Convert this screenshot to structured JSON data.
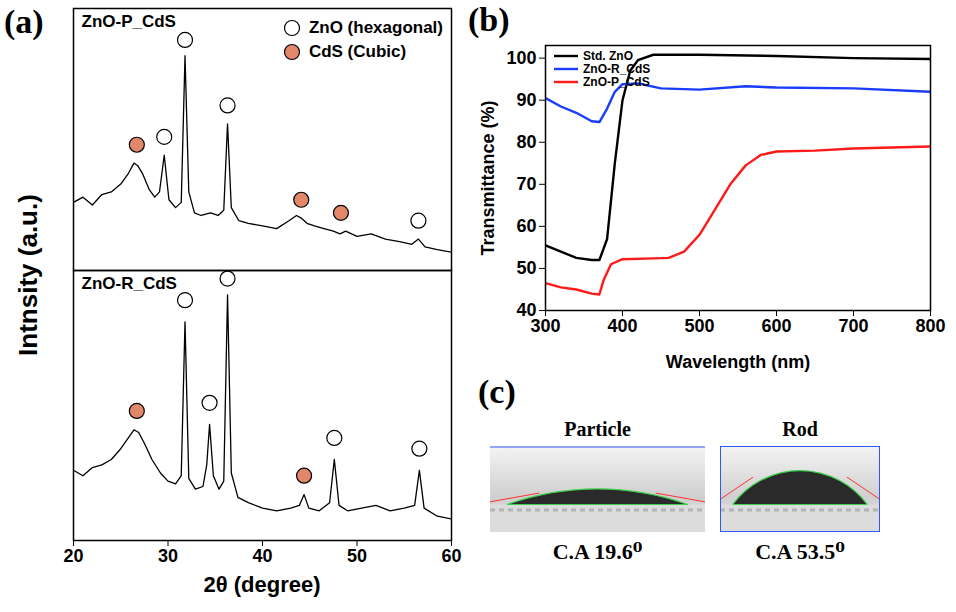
{
  "chart_data": [
    {
      "panel": "(a)",
      "type": "line",
      "title": "ZnO-P_CdS",
      "ylabel": "Intnsity (a.u.)",
      "xlim": [
        20,
        60
      ],
      "ylim": [
        0,
        100
      ],
      "tick_labels": false,
      "legend": "top-right",
      "series": [
        {
          "type": "line",
          "color": "#000000",
          "x": [
            20,
            21,
            22,
            23,
            24,
            25,
            25.8,
            26.4,
            26.8,
            27.3,
            28,
            28.6,
            29.1,
            29.6,
            30.1,
            30.8,
            31.4,
            31.8,
            32.2,
            32.8,
            33.5,
            34.5,
            35.3,
            35.9,
            36.3,
            36.7,
            37.5,
            38.5,
            40,
            41.5,
            42.8,
            43.6,
            44.1,
            44.7,
            45.5,
            46.5,
            47.5,
            48.2,
            48.8,
            50,
            51.5,
            53,
            54.5,
            55.8,
            56.5,
            57.2,
            58.5,
            60
          ],
          "values": [
            26,
            28,
            25,
            29,
            30,
            33,
            37,
            41,
            40,
            37,
            31,
            28,
            30,
            44,
            27,
            24,
            26,
            82,
            30,
            22,
            21,
            22,
            21,
            23,
            56,
            24,
            19,
            18,
            17,
            16,
            19,
            21,
            20,
            18,
            17,
            16,
            15,
            14,
            15,
            13,
            14,
            12,
            11,
            10,
            12,
            9,
            8,
            7
          ]
        },
        {
          "name": "ZnO (hexagonal)",
          "type": "scatter",
          "marker": "open-circle",
          "color": "#000000",
          "x": [
            29.6,
            31.8,
            36.3,
            56.5
          ],
          "values": [
            51,
            88,
            63,
            19
          ]
        },
        {
          "name": "CdS (Cubic)",
          "type": "scatter",
          "marker": "circle",
          "color": "#e3876a",
          "x": [
            26.7,
            44.1,
            48.3
          ],
          "values": [
            48,
            27,
            22
          ]
        }
      ]
    },
    {
      "type": "line",
      "title": "ZnO-R_CdS",
      "xlabel": "2θ (degree)",
      "xlim": [
        20,
        60
      ],
      "xticks": [
        20,
        30,
        40,
        50,
        60
      ],
      "ylim": [
        0,
        100
      ],
      "tick_labels": "x",
      "series": [
        {
          "type": "line",
          "color": "#000000",
          "x": [
            20,
            21,
            22,
            23,
            24,
            25,
            25.8,
            26.4,
            26.9,
            27.5,
            28.3,
            29.2,
            30,
            30.8,
            31.4,
            31.8,
            32.2,
            32.9,
            33.7,
            34.1,
            34.4,
            34.8,
            35.4,
            35.9,
            36.3,
            36.7,
            37.4,
            38.5,
            40,
            41.5,
            43,
            43.9,
            44.4,
            44.9,
            46,
            47.1,
            47.6,
            48.1,
            49,
            50.5,
            52,
            53.5,
            55,
            56.1,
            56.6,
            57.1,
            58.5,
            60
          ],
          "values": [
            26,
            24,
            27,
            28,
            30,
            34,
            38,
            41,
            40,
            36,
            30,
            25,
            22,
            21,
            24,
            81,
            23,
            19,
            20,
            28,
            43,
            24,
            19,
            22,
            91,
            25,
            16,
            14,
            12,
            11,
            12,
            13,
            17,
            12,
            11,
            14,
            30,
            13,
            11,
            12,
            13,
            11,
            12,
            13,
            26,
            12,
            9,
            8
          ]
        },
        {
          "name": "ZnO (hexagonal)",
          "type": "scatter",
          "marker": "open-circle",
          "color": "#000000",
          "x": [
            31.8,
            34.4,
            36.3,
            47.6,
            56.6
          ],
          "values": [
            89,
            51,
            97,
            38,
            34
          ]
        },
        {
          "name": "CdS (Cubic)",
          "type": "scatter",
          "marker": "circle",
          "color": "#e3876a",
          "x": [
            26.7,
            44.4
          ],
          "values": [
            48,
            24
          ]
        }
      ]
    },
    {
      "panel": "(b)",
      "type": "line",
      "xlabel": "Wavelength (nm)",
      "ylabel": "Transmittance (%)",
      "xlim": [
        300,
        800
      ],
      "xticks": [
        300,
        400,
        500,
        600,
        700,
        800
      ],
      "ylim": [
        40,
        103
      ],
      "yticks": [
        40,
        50,
        60,
        70,
        80,
        90,
        100
      ],
      "legend": "top-left",
      "series": [
        {
          "name": "Std. ZnO",
          "color": "#000000",
          "x": [
            300,
            320,
            340,
            360,
            370,
            380,
            390,
            400,
            410,
            420,
            440,
            500,
            600,
            700,
            800
          ],
          "values": [
            55.5,
            54,
            52.5,
            52,
            52,
            57,
            75,
            90,
            97,
            99.5,
            100.8,
            100.8,
            100.5,
            100,
            99.8
          ]
        },
        {
          "name": "ZnO-R_CdS",
          "color": "#1a3cff",
          "x": [
            300,
            320,
            340,
            360,
            370,
            380,
            390,
            400,
            420,
            450,
            500,
            560,
            600,
            700,
            800
          ],
          "values": [
            90.5,
            88.5,
            87,
            85,
            84.8,
            88,
            92,
            93.8,
            94,
            92.8,
            92.5,
            93.3,
            93,
            92.8,
            92
          ]
        },
        {
          "name": "ZnO-P_CdS",
          "color": "#ff1a1a",
          "x": [
            300,
            320,
            340,
            360,
            370,
            375,
            385,
            400,
            440,
            460,
            480,
            500,
            520,
            540,
            560,
            580,
            600,
            650,
            700,
            800
          ],
          "values": [
            46.5,
            45.5,
            45,
            44,
            43.8,
            47,
            51,
            52.2,
            52.4,
            52.5,
            54,
            58,
            64,
            70,
            74.5,
            77,
            77.8,
            78,
            78.5,
            79
          ]
        }
      ]
    }
  ],
  "panel_c": {
    "panel": "(c)",
    "images": [
      {
        "title": "Particle",
        "caption": "C.A 19.6⁰",
        "contact_angle": 19.6
      },
      {
        "title": "Rod",
        "caption": "C.A 53.5⁰",
        "contact_angle": 53.5
      }
    ]
  }
}
